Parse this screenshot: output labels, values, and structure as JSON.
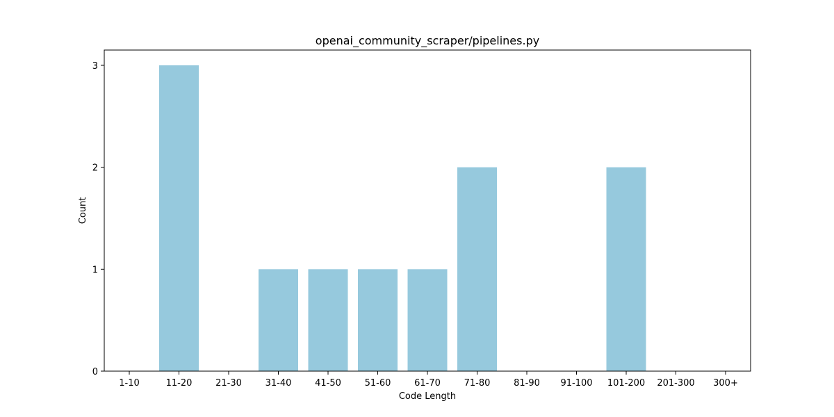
{
  "chart_data": {
    "type": "bar",
    "title": "openai_community_scraper/pipelines.py",
    "xlabel": "Code Length",
    "ylabel": "Count",
    "categories": [
      "1-10",
      "11-20",
      "21-30",
      "31-40",
      "41-50",
      "51-60",
      "61-70",
      "71-80",
      "81-90",
      "91-100",
      "101-200",
      "201-300",
      "300+"
    ],
    "values": [
      0,
      3,
      0,
      1,
      1,
      1,
      1,
      2,
      0,
      0,
      2,
      0,
      0
    ],
    "yticks": [
      0,
      1,
      2,
      3
    ],
    "ylim": [
      0,
      3.15
    ],
    "grid": false,
    "bar_color": "#96c9dd"
  }
}
